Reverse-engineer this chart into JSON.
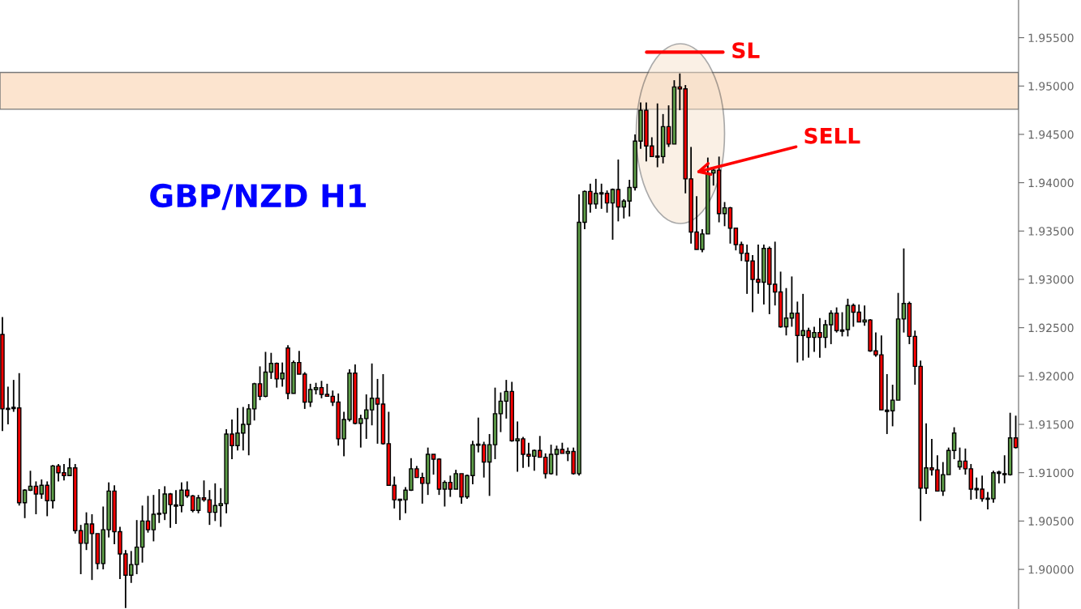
{
  "chart_data": {
    "type": "candlestick",
    "title": "GBP/NZD H1",
    "categories": [
      null,
      null,
      null,
      null,
      null,
      null,
      null,
      null,
      null,
      null,
      null,
      null,
      null,
      null,
      null,
      null,
      null,
      null,
      null,
      null,
      null,
      null,
      null,
      null,
      null,
      null,
      null,
      null,
      null,
      null,
      null,
      null,
      null,
      null,
      null,
      null,
      null,
      null,
      null,
      null,
      null,
      null,
      null,
      null,
      null,
      null,
      null,
      null,
      null,
      null,
      null,
      null,
      null,
      null,
      null,
      null,
      null,
      null,
      null,
      null,
      null,
      null,
      null,
      null,
      null,
      null,
      null,
      null,
      null,
      null,
      null,
      null,
      null,
      null,
      null,
      null,
      null,
      null,
      null,
      null,
      null,
      null,
      null,
      null,
      null,
      null,
      null,
      null,
      null,
      null,
      null,
      null,
      null,
      null,
      null,
      null,
      null,
      null,
      null,
      null,
      null,
      null,
      null,
      null,
      null,
      null,
      null,
      null,
      null,
      null,
      null,
      null,
      null,
      null,
      null,
      null,
      null,
      null,
      null,
      null,
      null,
      null,
      null,
      null,
      null,
      null,
      null,
      null,
      null,
      null,
      null,
      null,
      null,
      null,
      null,
      null,
      null,
      null,
      null,
      null,
      null,
      null,
      null,
      null,
      null,
      null,
      null,
      null,
      null,
      null,
      null,
      null,
      null,
      null,
      null,
      null,
      null,
      null,
      null,
      null,
      null,
      null,
      null,
      null,
      null,
      null,
      null,
      null,
      null,
      null,
      null,
      null,
      null,
      null,
      null,
      null,
      null,
      null,
      null,
      null,
      null,
      null
    ],
    "ohlc": [
      [
        1.9243,
        1.9261,
        1.9143,
        1.9166
      ],
      [
        1.9166,
        1.9189,
        1.915,
        1.9166
      ],
      [
        1.9167,
        1.9196,
        1.9163,
        1.9167
      ],
      [
        1.9167,
        1.9203,
        1.9066,
        1.9069
      ],
      [
        1.9069,
        1.9083,
        1.9053,
        1.9082
      ],
      [
        1.9082,
        1.9102,
        1.9081,
        1.9086
      ],
      [
        1.9086,
        1.9091,
        1.9057,
        1.9078
      ],
      [
        1.9078,
        1.9093,
        1.9073,
        1.9087
      ],
      [
        1.9087,
        1.9091,
        1.9055,
        1.9071
      ],
      [
        1.9071,
        1.9108,
        1.9063,
        1.9107
      ],
      [
        1.9107,
        1.9109,
        1.9091,
        1.91
      ],
      [
        1.91,
        1.9109,
        1.9092,
        1.9097
      ],
      [
        1.9097,
        1.9115,
        1.9097,
        1.9105
      ],
      [
        1.9105,
        1.9109,
        1.9037,
        1.904
      ],
      [
        1.904,
        1.9046,
        1.8995,
        1.9027
      ],
      [
        1.9027,
        1.9059,
        1.902,
        1.9047
      ],
      [
        1.9047,
        1.9057,
        1.8989,
        1.9037
      ],
      [
        1.9037,
        1.9037,
        1.9,
        1.9006
      ],
      [
        1.9006,
        1.9065,
        1.9,
        1.9041
      ],
      [
        1.9041,
        1.909,
        1.9033,
        1.9081
      ],
      [
        1.9081,
        1.9087,
        1.9026,
        1.9039
      ],
      [
        1.9039,
        1.9044,
        1.899,
        1.9016
      ],
      [
        1.9016,
        1.902,
        1.896,
        1.8994
      ],
      [
        1.8994,
        1.9019,
        1.8986,
        1.9005
      ],
      [
        1.9005,
        1.9051,
        1.8995,
        1.9023
      ],
      [
        1.9023,
        1.9066,
        1.9007,
        1.905
      ],
      [
        1.905,
        1.9076,
        1.9038,
        1.9041
      ],
      [
        1.9041,
        1.9077,
        1.9029,
        1.9057
      ],
      [
        1.9057,
        1.9083,
        1.9048,
        1.9058
      ],
      [
        1.9058,
        1.9086,
        1.9051,
        1.9078
      ],
      [
        1.9078,
        1.9079,
        1.9043,
        1.9067
      ],
      [
        1.9066,
        1.9082,
        1.9047,
        1.9066
      ],
      [
        1.9066,
        1.909,
        1.9059,
        1.9082
      ],
      [
        1.9082,
        1.9091,
        1.9074,
        1.9076
      ],
      [
        1.9076,
        1.9077,
        1.9059,
        1.9061
      ],
      [
        1.9061,
        1.9077,
        1.9058,
        1.9074
      ],
      [
        1.9074,
        1.9092,
        1.907,
        1.9072
      ],
      [
        1.9072,
        1.9082,
        1.9046,
        1.9059
      ],
      [
        1.9059,
        1.9089,
        1.905,
        1.9066
      ],
      [
        1.9066,
        1.9084,
        1.9044,
        1.9068
      ],
      [
        1.9068,
        1.9145,
        1.9058,
        1.914
      ],
      [
        1.914,
        1.9155,
        1.9114,
        1.9128
      ],
      [
        1.9128,
        1.9167,
        1.9123,
        1.9141
      ],
      [
        1.9141,
        1.9168,
        1.9123,
        1.915
      ],
      [
        1.915,
        1.9171,
        1.9118,
        1.9166
      ],
      [
        1.9166,
        1.9193,
        1.9154,
        1.9192
      ],
      [
        1.9192,
        1.921,
        1.9175,
        1.9179
      ],
      [
        1.9179,
        1.9225,
        1.9178,
        1.9204
      ],
      [
        1.9204,
        1.9224,
        1.9197,
        1.9213
      ],
      [
        1.9213,
        1.9214,
        1.9188,
        1.9197
      ],
      [
        1.9197,
        1.9214,
        1.9189,
        1.9203
      ],
      [
        1.9229,
        1.9232,
        1.9176,
        1.9182
      ],
      [
        1.9182,
        1.9216,
        1.9182,
        1.9214
      ],
      [
        1.9214,
        1.9226,
        1.9202,
        1.9202
      ],
      [
        1.9202,
        1.9204,
        1.9166,
        1.9173
      ],
      [
        1.9173,
        1.9192,
        1.9168,
        1.9186
      ],
      [
        1.9186,
        1.9193,
        1.9181,
        1.9188
      ],
      [
        1.9188,
        1.9195,
        1.9177,
        1.9181
      ],
      [
        1.9181,
        1.9192,
        1.9179,
        1.9179
      ],
      [
        1.9179,
        1.9185,
        1.9169,
        1.9173
      ],
      [
        1.9173,
        1.9182,
        1.9128,
        1.9135
      ],
      [
        1.9135,
        1.9163,
        1.9117,
        1.9155
      ],
      [
        1.9155,
        1.9207,
        1.9153,
        1.9203
      ],
      [
        1.9203,
        1.9212,
        1.915,
        1.9151
      ],
      [
        1.9151,
        1.916,
        1.9126,
        1.9156
      ],
      [
        1.9156,
        1.9181,
        1.9135,
        1.9165
      ],
      [
        1.9165,
        1.9213,
        1.9149,
        1.9177
      ],
      [
        1.9177,
        1.9197,
        1.913,
        1.9171
      ],
      [
        1.9171,
        1.9202,
        1.9129,
        1.913
      ],
      [
        1.913,
        1.9163,
        1.9087,
        1.9087
      ],
      [
        1.9087,
        1.9096,
        1.9063,
        1.9072
      ],
      [
        1.9072,
        1.9073,
        1.9051,
        1.9072
      ],
      [
        1.9072,
        1.9085,
        1.9058,
        1.9082
      ],
      [
        1.9082,
        1.9115,
        1.9081,
        1.9104
      ],
      [
        1.9104,
        1.9107,
        1.9095,
        1.9095
      ],
      [
        1.9095,
        1.91,
        1.9068,
        1.9089
      ],
      [
        1.9089,
        1.9126,
        1.9077,
        1.9119
      ],
      [
        1.9119,
        1.9119,
        1.9098,
        1.9114
      ],
      [
        1.9114,
        1.9115,
        1.9077,
        1.9083
      ],
      [
        1.9083,
        1.9092,
        1.9065,
        1.909
      ],
      [
        1.909,
        1.9097,
        1.9075,
        1.9083
      ],
      [
        1.9083,
        1.9103,
        1.9083,
        1.9099
      ],
      [
        1.9099,
        1.9099,
        1.9068,
        1.9075
      ],
      [
        1.9075,
        1.9098,
        1.9073,
        1.9097
      ],
      [
        1.9097,
        1.9133,
        1.9088,
        1.9129
      ],
      [
        1.9129,
        1.9157,
        1.9121,
        1.9129
      ],
      [
        1.9129,
        1.9132,
        1.9095,
        1.9111
      ],
      [
        1.9111,
        1.914,
        1.9076,
        1.9129
      ],
      [
        1.9129,
        1.9188,
        1.9114,
        1.9161
      ],
      [
        1.9161,
        1.9183,
        1.9142,
        1.9174
      ],
      [
        1.9174,
        1.9196,
        1.9156,
        1.9184
      ],
      [
        1.9184,
        1.9194,
        1.9132,
        1.9133
      ],
      [
        1.9133,
        1.9153,
        1.9101,
        1.9135
      ],
      [
        1.9135,
        1.9137,
        1.9105,
        1.9119
      ],
      [
        1.9119,
        1.9131,
        1.9106,
        1.9117
      ],
      [
        1.9117,
        1.9124,
        1.9102,
        1.9123
      ],
      [
        1.9123,
        1.9138,
        1.9116,
        1.9116
      ],
      [
        1.9116,
        1.912,
        1.9094,
        1.9099
      ],
      [
        1.9099,
        1.9129,
        1.9098,
        1.9119
      ],
      [
        1.9119,
        1.9128,
        1.9097,
        1.9124
      ],
      [
        1.9124,
        1.9131,
        1.912,
        1.912
      ],
      [
        1.912,
        1.9126,
        1.9112,
        1.9122
      ],
      [
        1.9122,
        1.9126,
        1.9098,
        1.9099
      ],
      [
        1.9099,
        1.9388,
        1.9097,
        1.9359
      ],
      [
        1.9359,
        1.9392,
        1.9352,
        1.9391
      ],
      [
        1.9391,
        1.9399,
        1.9369,
        1.9378
      ],
      [
        1.9378,
        1.9404,
        1.9373,
        1.9389
      ],
      [
        1.9389,
        1.9399,
        1.9373,
        1.9389
      ],
      [
        1.9389,
        1.9392,
        1.9369,
        1.9379
      ],
      [
        1.9379,
        1.9394,
        1.9341,
        1.9393
      ],
      [
        1.9393,
        1.9424,
        1.936,
        1.9375
      ],
      [
        1.9375,
        1.9383,
        1.9363,
        1.9381
      ],
      [
        1.9381,
        1.9403,
        1.9365,
        1.9395
      ],
      [
        1.9395,
        1.945,
        1.9392,
        1.9443
      ],
      [
        1.9443,
        1.9483,
        1.9435,
        1.9475
      ],
      [
        1.9475,
        1.9483,
        1.9422,
        1.9438
      ],
      [
        1.9438,
        1.9447,
        1.9427,
        1.9427
      ],
      [
        1.9427,
        1.9482,
        1.9416,
        1.9427
      ],
      [
        1.9427,
        1.9471,
        1.942,
        1.9458
      ],
      [
        1.9458,
        1.948,
        1.9437,
        1.944
      ],
      [
        1.944,
        1.9506,
        1.944,
        1.9499
      ],
      [
        1.9499,
        1.9513,
        1.9475,
        1.9497
      ],
      [
        1.9497,
        1.9501,
        1.9389,
        1.9404
      ],
      [
        1.9404,
        1.9437,
        1.9337,
        1.9349
      ],
      [
        1.9349,
        1.9386,
        1.9331,
        1.9331
      ],
      [
        1.9331,
        1.9352,
        1.9328,
        1.9347
      ],
      [
        1.9347,
        1.9426,
        1.9347,
        1.941
      ],
      [
        1.941,
        1.9416,
        1.9397,
        1.9413
      ],
      [
        1.9413,
        1.9427,
        1.9359,
        1.9368
      ],
      [
        1.9368,
        1.938,
        1.9355,
        1.9374
      ],
      [
        1.9374,
        1.9375,
        1.9337,
        1.9353
      ],
      [
        1.9353,
        1.9353,
        1.933,
        1.9336
      ],
      [
        1.9336,
        1.9339,
        1.9319,
        1.9327
      ],
      [
        1.9327,
        1.9336,
        1.9285,
        1.9319
      ],
      [
        1.9319,
        1.9325,
        1.9266,
        1.93
      ],
      [
        1.93,
        1.9336,
        1.9285,
        1.9297
      ],
      [
        1.9297,
        1.9336,
        1.9274,
        1.9332
      ],
      [
        1.9332,
        1.9334,
        1.9264,
        1.9295
      ],
      [
        1.9295,
        1.9339,
        1.9273,
        1.9287
      ],
      [
        1.9287,
        1.9308,
        1.925,
        1.9251
      ],
      [
        1.9251,
        1.9291,
        1.9242,
        1.926
      ],
      [
        1.926,
        1.9303,
        1.9251,
        1.9265
      ],
      [
        1.9265,
        1.9277,
        1.9214,
        1.9242
      ],
      [
        1.9242,
        1.9285,
        1.9216,
        1.9247
      ],
      [
        1.9247,
        1.925,
        1.9219,
        1.924
      ],
      [
        1.924,
        1.9251,
        1.9225,
        1.9245
      ],
      [
        1.9245,
        1.926,
        1.9219,
        1.924
      ],
      [
        1.924,
        1.9258,
        1.9229,
        1.9253
      ],
      [
        1.9253,
        1.9268,
        1.9233,
        1.9265
      ],
      [
        1.9265,
        1.9271,
        1.9245,
        1.9247
      ],
      [
        1.9247,
        1.9266,
        1.9241,
        1.9247
      ],
      [
        1.9248,
        1.928,
        1.9241,
        1.9273
      ],
      [
        1.9273,
        1.9275,
        1.9251,
        1.9266
      ],
      [
        1.9266,
        1.9274,
        1.9256,
        1.9256
      ],
      [
        1.9256,
        1.9273,
        1.9252,
        1.9258
      ],
      [
        1.9258,
        1.9259,
        1.9225,
        1.9226
      ],
      [
        1.9226,
        1.9245,
        1.922,
        1.9222
      ],
      [
        1.9222,
        1.9242,
        1.9165,
        1.9165
      ],
      [
        1.9164,
        1.9202,
        1.914,
        1.9164
      ],
      [
        1.9164,
        1.9191,
        1.9148,
        1.9175
      ],
      [
        1.9175,
        1.9286,
        1.9175,
        1.9259
      ],
      [
        1.9259,
        1.9332,
        1.9245,
        1.9275
      ],
      [
        1.9275,
        1.9277,
        1.9233,
        1.9241
      ],
      [
        1.9241,
        1.9247,
        1.9191,
        1.921
      ],
      [
        1.921,
        1.9216,
        1.905,
        1.9084
      ],
      [
        1.9084,
        1.9151,
        1.9078,
        1.9105
      ],
      [
        1.9105,
        1.9135,
        1.9097,
        1.9103
      ],
      [
        1.9103,
        1.9118,
        1.9081,
        1.9081
      ],
      [
        1.9081,
        1.9111,
        1.9076,
        1.9098
      ],
      [
        1.9098,
        1.9126,
        1.9098,
        1.9123
      ],
      [
        1.9123,
        1.9147,
        1.9114,
        1.9141
      ],
      [
        1.9106,
        1.9126,
        1.9103,
        1.9112
      ],
      [
        1.9112,
        1.9125,
        1.9098,
        1.9104
      ],
      [
        1.9104,
        1.9109,
        1.9072,
        1.9083
      ],
      [
        1.9083,
        1.9095,
        1.9073,
        1.9083
      ],
      [
        1.9083,
        1.9097,
        1.907,
        1.9073
      ],
      [
        1.9073,
        1.908,
        1.9062,
        1.9073
      ],
      [
        1.9073,
        1.9102,
        1.9069,
        1.91
      ],
      [
        1.91,
        1.9102,
        1.9089,
        1.91
      ],
      [
        1.9099,
        1.9118,
        1.9089,
        1.9098
      ],
      [
        1.9098,
        1.9162,
        1.9097,
        1.9136
      ],
      [
        1.9136,
        1.9159,
        1.9125,
        1.9126
      ]
    ],
    "colors": [
      "#ff0000",
      "#000000",
      "#000000",
      "#ff0000",
      "#5e9e48",
      "#5e9e48",
      "#ff0000",
      "#5e9e48",
      "#ff0000",
      "#5e9e48",
      "#ff0000",
      "#ff0000",
      "#5e9e48",
      "#ff0000",
      "#ff0000",
      "#5e9e48",
      "#ff0000",
      "#ff0000",
      "#5e9e48",
      "#5e9e48",
      "#ff0000",
      "#ff0000",
      "#ff0000",
      "#5e9e48",
      "#5e9e48",
      "#5e9e48",
      "#ff0000",
      "#5e9e48",
      "#5e9e48",
      "#5e9e48",
      "#ff0000",
      "#000000",
      "#5e9e48",
      "#ff0000",
      "#ff0000",
      "#5e9e48",
      "#ff0000",
      "#ff0000",
      "#5e9e48",
      "#5e9e48",
      "#5e9e48",
      "#ff0000",
      "#5e9e48",
      "#5e9e48",
      "#5e9e48",
      "#5e9e48",
      "#ff0000",
      "#5e9e48",
      "#5e9e48",
      "#ff0000",
      "#5e9e48",
      "#ff0000",
      "#5e9e48",
      "#ff0000",
      "#ff0000",
      "#5e9e48",
      "#5e9e48",
      "#ff0000",
      "#ff0000",
      "#ff0000",
      "#ff0000",
      "#5e9e48",
      "#5e9e48",
      "#ff0000",
      "#5e9e48",
      "#5e9e48",
      "#5e9e48",
      "#ff0000",
      "#ff0000",
      "#ff0000",
      "#ff0000",
      "#000000",
      "#5e9e48",
      "#5e9e48",
      "#ff0000",
      "#ff0000",
      "#5e9e48",
      "#ff0000",
      "#ff0000",
      "#5e9e48",
      "#ff0000",
      "#5e9e48",
      "#ff0000",
      "#5e9e48",
      "#5e9e48",
      "#000000",
      "#ff0000",
      "#5e9e48",
      "#5e9e48",
      "#5e9e48",
      "#5e9e48",
      "#ff0000",
      "#5e9e48",
      "#ff0000",
      "#ff0000",
      "#5e9e48",
      "#ff0000",
      "#ff0000",
      "#5e9e48",
      "#5e9e48",
      "#ff0000",
      "#5e9e48",
      "#ff0000",
      "#5e9e48",
      "#5e9e48",
      "#ff0000",
      "#5e9e48",
      "#000000",
      "#ff0000",
      "#5e9e48",
      "#ff0000",
      "#5e9e48",
      "#5e9e48",
      "#5e9e48",
      "#5e9e48",
      "#ff0000",
      "#ff0000",
      "#000000",
      "#5e9e48",
      "#ff0000",
      "#5e9e48",
      "#ff0000",
      "#ff0000",
      "#ff0000",
      "#ff0000",
      "#5e9e48",
      "#5e9e48",
      "#5e9e48",
      "#ff0000",
      "#5e9e48",
      "#ff0000",
      "#ff0000",
      "#ff0000",
      "#ff0000",
      "#ff0000",
      "#ff0000",
      "#5e9e48",
      "#ff0000",
      "#ff0000",
      "#ff0000",
      "#5e9e48",
      "#5e9e48",
      "#ff0000",
      "#5e9e48",
      "#ff0000",
      "#5e9e48",
      "#ff0000",
      "#5e9e48",
      "#5e9e48",
      "#ff0000",
      "#000000",
      "#5e9e48",
      "#ff0000",
      "#ff0000",
      "#5e9e48",
      "#ff0000",
      "#ff0000",
      "#ff0000",
      "#000000",
      "#5e9e48",
      "#5e9e48",
      "#5e9e48",
      "#ff0000",
      "#ff0000",
      "#ff0000",
      "#5e9e48",
      "#ff0000",
      "#ff0000",
      "#5e9e48",
      "#5e9e48",
      "#5e9e48",
      "#5e9e48",
      "#ff0000",
      "#ff0000",
      "#000000",
      "#ff0000",
      "#000000",
      "#5e9e48",
      "#000000",
      "#ff0000",
      "#5e9e48",
      "#ff0000"
    ],
    "ylim": [
      1.8959,
      1.9589
    ],
    "yticks": [
      {
        "value": 1.9,
        "label": "1.90000"
      },
      {
        "value": 1.905,
        "label": "1.90500"
      },
      {
        "value": 1.91,
        "label": "1.91000"
      },
      {
        "value": 1.915,
        "label": "1.91500"
      },
      {
        "value": 1.92,
        "label": "1.92000"
      },
      {
        "value": 1.925,
        "label": "1.92500"
      },
      {
        "value": 1.93,
        "label": "1.93000"
      },
      {
        "value": 1.935,
        "label": "1.93500"
      },
      {
        "value": 1.94,
        "label": "1.94000"
      },
      {
        "value": 1.945,
        "label": "1.94500"
      },
      {
        "value": 1.95,
        "label": "1.95000"
      },
      {
        "value": 1.955,
        "label": "1.95500"
      }
    ],
    "tick_labels": "y",
    "bands": [
      {
        "axis": "y",
        "from": 1.9476,
        "to": 1.9514,
        "label": null,
        "color": "#fce4cf"
      }
    ],
    "ref_lines": [
      {
        "axis": "y",
        "value": 1.9535,
        "label": "SL",
        "color": "#ff0000"
      }
    ],
    "annotations": [
      "SELL"
    ],
    "grid": false
  }
}
